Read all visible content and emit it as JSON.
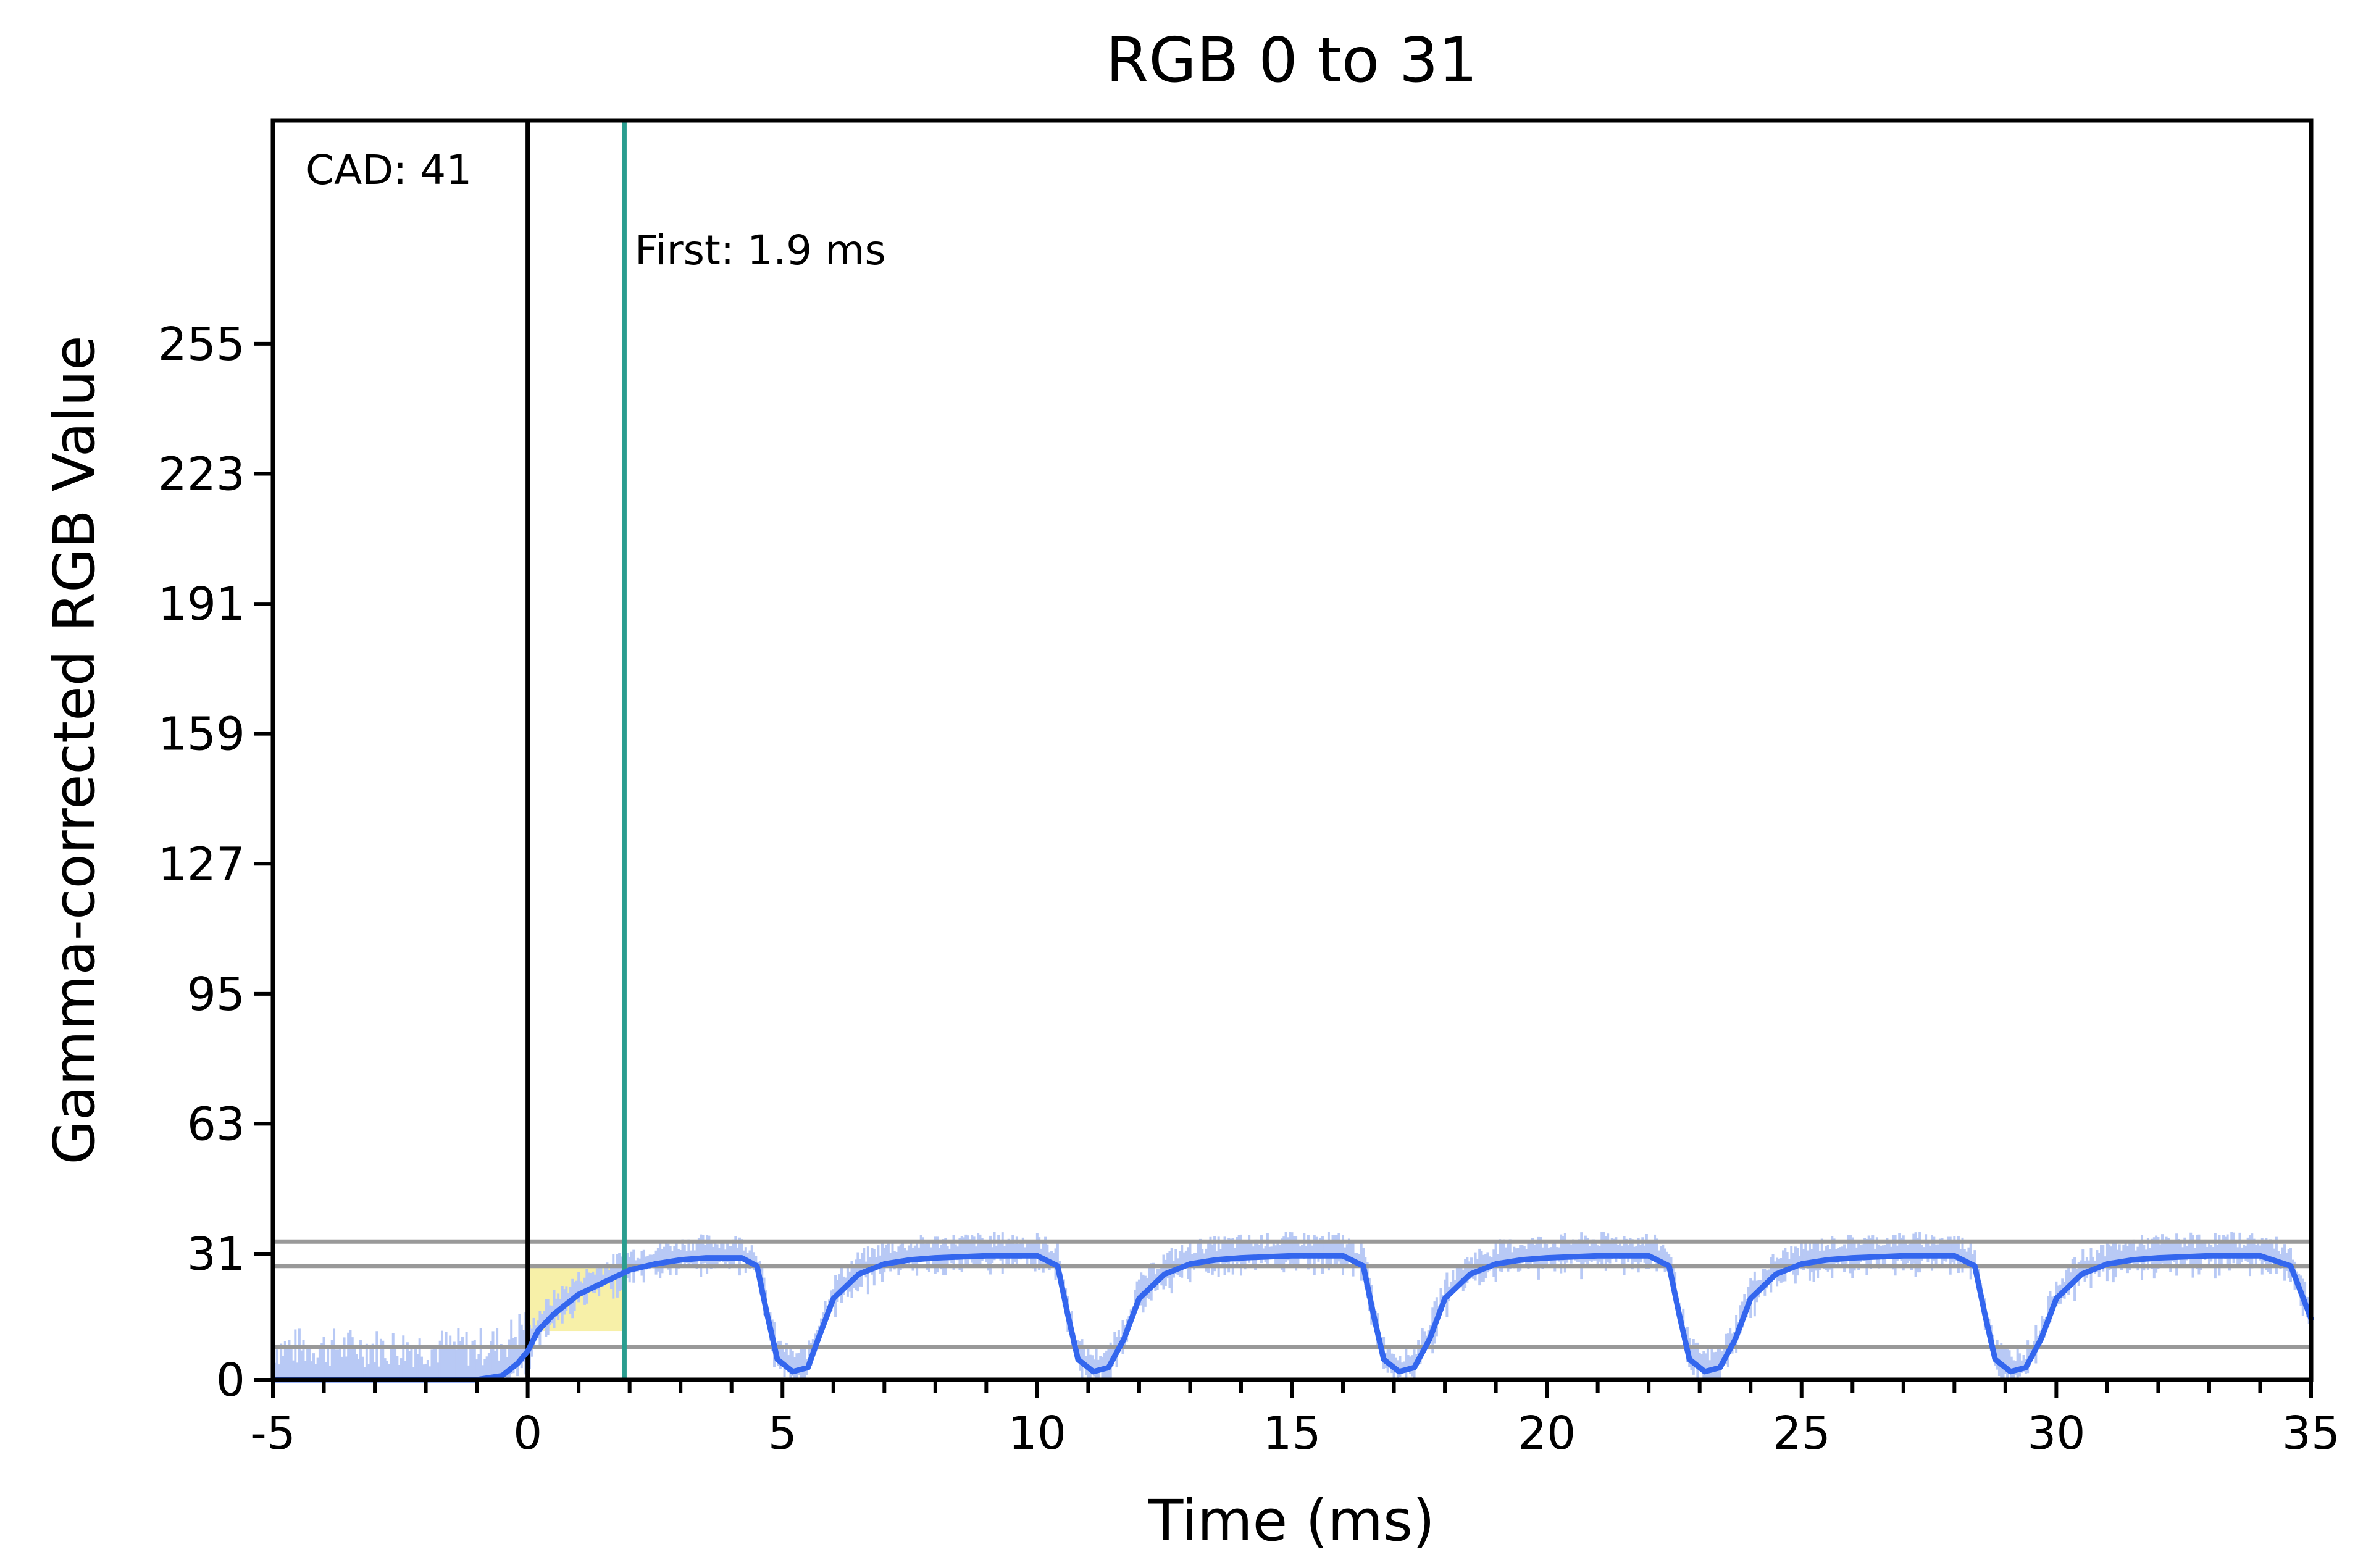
{
  "chart_data": {
    "type": "line",
    "title": "RGB 0 to 31",
    "xlabel": "Time (ms)",
    "ylabel": "Gamma-corrected RGB Value",
    "xlim": [
      -5,
      35
    ],
    "ylim": [
      0,
      310
    ],
    "x_ticks": [
      "-5",
      "0",
      "5",
      "10",
      "15",
      "20",
      "25",
      "30",
      "35"
    ],
    "x_tick_values": [
      -5,
      0,
      5,
      10,
      15,
      20,
      25,
      30,
      35
    ],
    "y_ticks": [
      "0",
      "31",
      "63",
      "95",
      "127",
      "159",
      "191",
      "223",
      "255"
    ],
    "y_tick_values": [
      0,
      31,
      63,
      95,
      127,
      159,
      191,
      223,
      255
    ],
    "grid": false,
    "legend": "none",
    "reference_lines": {
      "horizontal": [
        34,
        28,
        8
      ],
      "start_x": 0,
      "first_x": 1.9
    },
    "annotations": {
      "cad": "CAD: 41",
      "first": "First: 1.9 ms"
    },
    "series": [
      {
        "x": [
          -5,
          -1,
          -0.5,
          -0.2,
          0,
          0.2,
          0.5,
          1,
          1.5,
          2,
          2.5,
          3,
          3.5,
          4.2,
          4.5,
          4.7,
          4.9,
          5.2,
          5.5,
          5.7,
          6,
          6.5,
          7,
          7.5,
          8,
          9,
          10,
          10.4,
          10.6,
          10.8,
          11.1,
          11.4,
          11.7,
          12,
          12.5,
          13,
          13.5,
          14,
          15,
          16,
          16.4,
          16.6,
          16.8,
          17.1,
          17.4,
          17.7,
          18,
          18.5,
          19,
          19.5,
          20,
          21,
          22,
          22.4,
          22.6,
          22.8,
          23.1,
          23.4,
          23.7,
          24,
          24.5,
          25,
          25.5,
          26,
          27,
          28,
          28.4,
          28.6,
          28.8,
          29.1,
          29.4,
          29.7,
          30,
          30.5,
          31,
          31.5,
          32,
          33,
          34,
          34.6,
          35
        ],
        "y": [
          0,
          0,
          1,
          4,
          7,
          12,
          16,
          21,
          24,
          27,
          28.5,
          29.5,
          30,
          30,
          28,
          16,
          5,
          2,
          3,
          10,
          20,
          26,
          28.5,
          29.5,
          30,
          30.5,
          30.5,
          28,
          16,
          5,
          2,
          3,
          10,
          20,
          26,
          28.5,
          29.5,
          30,
          30.5,
          30.5,
          28,
          16,
          5,
          2,
          3,
          10,
          20,
          26,
          28.5,
          29.5,
          30,
          30.5,
          30.5,
          28,
          16,
          5,
          2,
          3,
          10,
          20,
          26,
          28.5,
          29.5,
          30,
          30.5,
          30.5,
          28,
          16,
          5,
          2,
          3,
          10,
          20,
          26,
          28.5,
          29.5,
          30,
          30.5,
          30.5,
          28,
          15
        ]
      }
    ],
    "colors": {
      "trace": "#3366ee",
      "raw_trace": "#b8c9f5",
      "reference_line": "#999999",
      "first_line": "#2a9d8f",
      "start_line": "#000000",
      "highlight": "#f7f0a8"
    }
  }
}
